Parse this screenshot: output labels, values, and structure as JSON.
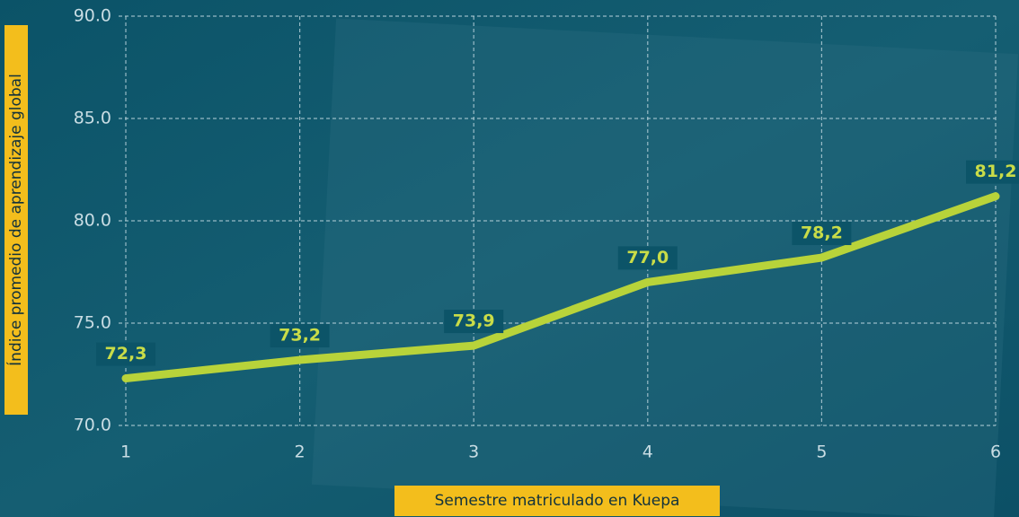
{
  "chart_data": {
    "type": "line",
    "x_label": "Semestre matriculado en Kuepa",
    "y_label": "Índice promedio de aprendizaje global",
    "x": [
      1,
      2,
      3,
      4,
      5,
      6
    ],
    "values": [
      72.3,
      73.2,
      73.9,
      77.0,
      78.2,
      81.2
    ],
    "value_labels": [
      "72,3",
      "73,2",
      "73,9",
      "77,0",
      "78,2",
      "81,2"
    ],
    "color": "#b8d33a",
    "xlim": [
      1,
      6
    ],
    "xticks": [
      1,
      2,
      3,
      4,
      5,
      6
    ],
    "ylim": [
      70,
      90
    ],
    "yticks": [
      {
        "value": 70,
        "label": "70.0"
      },
      {
        "value": 75,
        "label": "75.0"
      },
      {
        "value": 80,
        "label": "80.0"
      },
      {
        "value": 85,
        "label": "85.0"
      },
      {
        "value": 90,
        "label": "90.0"
      }
    ],
    "grid": true
  }
}
